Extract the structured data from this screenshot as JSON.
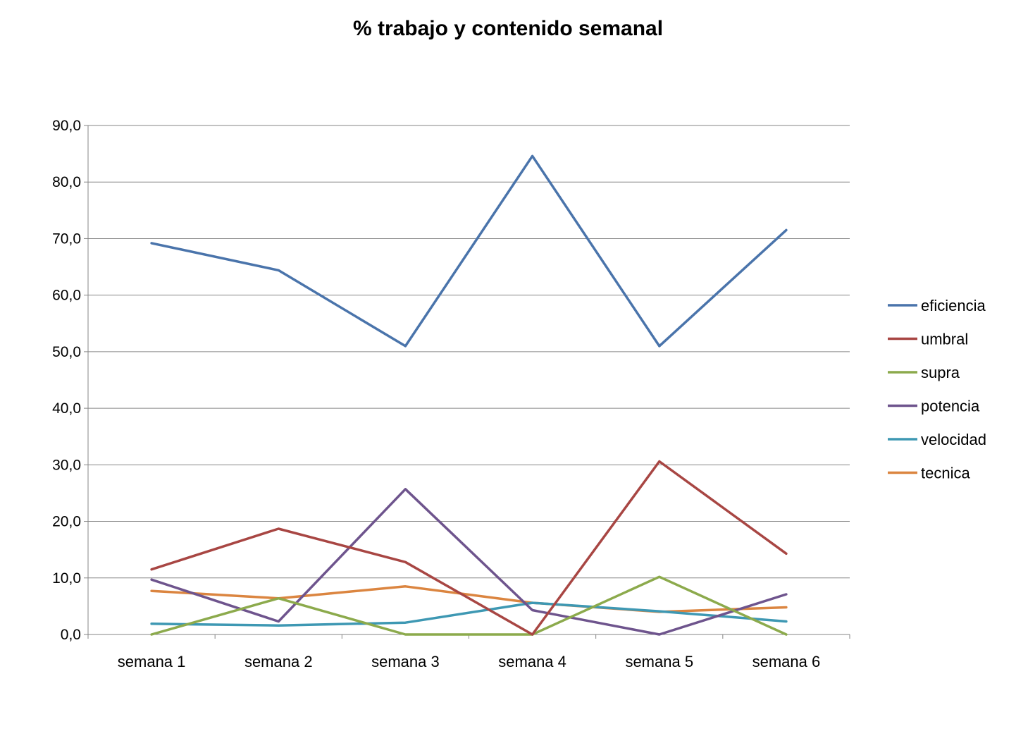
{
  "chart_data": {
    "type": "line",
    "title": "% trabajo  y contenido semanal",
    "xlabel": "",
    "ylabel": "",
    "categories": [
      "semana 1",
      "semana 2",
      "semana 3",
      "semana 4",
      "semana 5",
      "semana 6"
    ],
    "ylim": [
      0,
      90
    ],
    "ytick_step": 10,
    "ytick_labels": [
      "0,0",
      "10,0",
      "20,0",
      "30,0",
      "40,0",
      "50,0",
      "60,0",
      "70,0",
      "80,0",
      "90,0"
    ],
    "grid": true,
    "legend": "right",
    "series": [
      {
        "name": "eficiencia",
        "color": "#4A74AB",
        "values": [
          69.2,
          64.4,
          51.0,
          84.6,
          51.0,
          71.5
        ]
      },
      {
        "name": "umbral",
        "color": "#A84643",
        "values": [
          11.5,
          18.7,
          12.8,
          0.0,
          30.6,
          14.3
        ]
      },
      {
        "name": "supra",
        "color": "#8CAA4C",
        "values": [
          0.0,
          6.4,
          0.0,
          0.0,
          10.2,
          0.0
        ]
      },
      {
        "name": "potencia",
        "color": "#6E548D",
        "values": [
          9.7,
          2.3,
          25.7,
          4.3,
          0.0,
          7.1
        ]
      },
      {
        "name": "velocidad",
        "color": "#3E98B3",
        "values": [
          1.9,
          1.6,
          2.1,
          5.6,
          4.1,
          2.3
        ]
      },
      {
        "name": "tecnica",
        "color": "#DB8540",
        "values": [
          7.7,
          6.4,
          8.5,
          5.6,
          4.0,
          4.8
        ]
      }
    ]
  }
}
